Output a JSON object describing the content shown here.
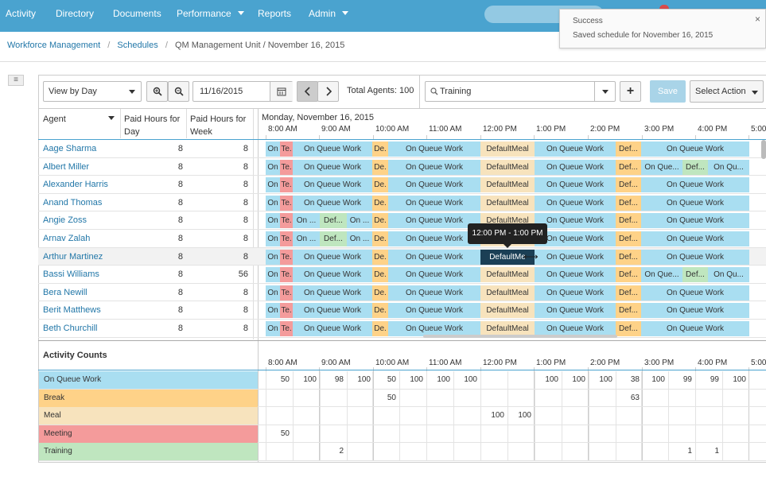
{
  "nav": {
    "items": [
      {
        "label": "Activity",
        "name": "nav-activity",
        "dropdown": false
      },
      {
        "label": "Directory",
        "name": "nav-directory",
        "dropdown": false
      },
      {
        "label": "Documents",
        "name": "nav-documents",
        "dropdown": false
      },
      {
        "label": "Performance",
        "name": "nav-performance",
        "dropdown": true
      },
      {
        "label": "Reports",
        "name": "nav-reports",
        "dropdown": false
      },
      {
        "label": "Admin",
        "name": "nav-admin",
        "dropdown": true
      }
    ]
  },
  "toast": {
    "title": "Success",
    "message": "Saved schedule for November 16, 2015",
    "close": "×"
  },
  "breadcrumb": {
    "item1": "Workforce Management",
    "sep1": "/",
    "item2": "Schedules",
    "sep2": "/",
    "current": "QM Management Unit / November 16, 2015"
  },
  "toolbar": {
    "view_select": "View by Day",
    "date_value": "11/16/2015",
    "total_agents": "Total Agents: 100",
    "search_value": "Training",
    "add": "+",
    "save": "Save",
    "select_action": "Select Action"
  },
  "grid_header": {
    "agent": "Agent",
    "paid_day_1": "Paid Hours for",
    "paid_day_2": "Day",
    "paid_week_1": "Paid Hours for",
    "paid_week_2": "Week",
    "date_label": "Monday, November 16, 2015"
  },
  "time_ticks": [
    "8:00 AM",
    "9:00 AM",
    "10:00 AM",
    "11:00 AM",
    "12:00 PM",
    "1:00 PM",
    "2:00 PM",
    "3:00 PM",
    "4:00 PM",
    "5:00"
  ],
  "agents": [
    {
      "name": "Aage Sharma",
      "day": "8",
      "week": "8",
      "variant": "a"
    },
    {
      "name": "Albert Miller",
      "day": "8",
      "week": "8",
      "variant": "b"
    },
    {
      "name": "Alexander Harris",
      "day": "8",
      "week": "8",
      "variant": "a"
    },
    {
      "name": "Anand Thomas",
      "day": "8",
      "week": "8",
      "variant": "a"
    },
    {
      "name": "Angie Zoss",
      "day": "8",
      "week": "8",
      "variant": "c"
    },
    {
      "name": "Arnav Zalah",
      "day": "8",
      "week": "8",
      "variant": "c"
    },
    {
      "name": "Arthur Martinez",
      "day": "8",
      "week": "8",
      "variant": "d"
    },
    {
      "name": "Bassi Williams",
      "day": "8",
      "week": "56",
      "variant": "b"
    },
    {
      "name": "Bera Newill",
      "day": "8",
      "week": "8",
      "variant": "a"
    },
    {
      "name": "Berit Matthews",
      "day": "8",
      "week": "8",
      "variant": "a"
    },
    {
      "name": "Beth Churchill",
      "day": "8",
      "week": "8",
      "variant": "a"
    }
  ],
  "segment_labels": {
    "on_short": "On",
    "te": "Te.",
    "de": "De.",
    "on_queue": "On Queue Work",
    "default_meal": "DefaultMeal",
    "def": "Def...",
    "on_ellipsis": "On ...",
    "on_que": "On Que...",
    "on_qu": "On Qu...",
    "defaultme": "DefaultMe"
  },
  "tooltip": "12:00 PM - 1:00 PM",
  "activity_counts": {
    "title": "Activity Counts",
    "rows": [
      {
        "label": "On Queue Work",
        "type": "oq",
        "values": [
          {
            "col": 0,
            "v": "50"
          },
          {
            "col": 1,
            "v": "100"
          },
          {
            "col": 2,
            "v": "98"
          },
          {
            "col": 3,
            "v": "100"
          },
          {
            "col": 4,
            "v": "50"
          },
          {
            "col": 5,
            "v": "100"
          },
          {
            "col": 6,
            "v": "100"
          },
          {
            "col": 7,
            "v": "100"
          },
          {
            "col": 10,
            "v": "100"
          },
          {
            "col": 11,
            "v": "100"
          },
          {
            "col": 12,
            "v": "100"
          },
          {
            "col": 13,
            "v": "38"
          },
          {
            "col": 14,
            "v": "100"
          },
          {
            "col": 15,
            "v": "99"
          },
          {
            "col": 16,
            "v": "99"
          },
          {
            "col": 17,
            "v": "100"
          }
        ]
      },
      {
        "label": "Break",
        "type": "br",
        "values": [
          {
            "col": 4,
            "v": "50"
          },
          {
            "col": 13,
            "v": "63"
          }
        ]
      },
      {
        "label": "Meal",
        "type": "ml",
        "values": [
          {
            "col": 8,
            "v": "100"
          },
          {
            "col": 9,
            "v": "100"
          }
        ]
      },
      {
        "label": "Meeting",
        "type": "tr",
        "values": [
          {
            "col": 0,
            "v": "50"
          }
        ]
      },
      {
        "label": "Training",
        "type": "tn",
        "values": [
          {
            "col": 2,
            "v": "2"
          },
          {
            "col": 15,
            "v": "1"
          },
          {
            "col": 16,
            "v": "1"
          }
        ]
      }
    ]
  },
  "colors": {
    "nav": "#4aa3cf",
    "on_queue": "#a9def1",
    "training": "#f49b9b",
    "break": "#fed288",
    "meal": "#f7e3bd",
    "training_count": "#bfe6bf"
  }
}
